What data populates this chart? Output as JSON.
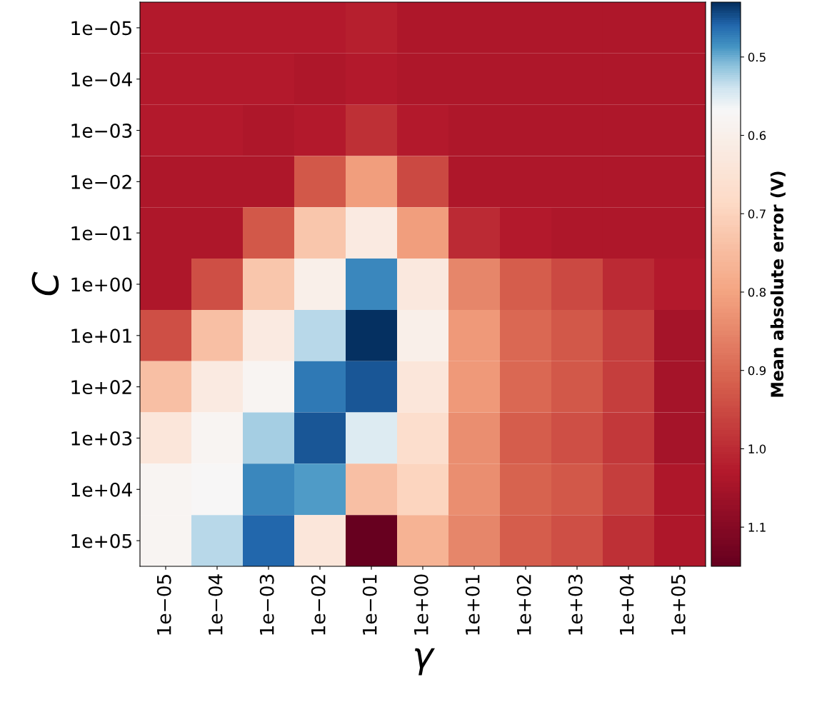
{
  "chart_data": {
    "type": "heatmap",
    "xlabel": "γ",
    "ylabel": "C",
    "clabel": "Mean absolute error (V)",
    "categories": [
      "1e−05",
      "1e−04",
      "1e−03",
      "1e−02",
      "1e−01",
      "1e+00",
      "1e+01",
      "1e+02",
      "1e+03",
      "1e+04",
      "1e+05"
    ],
    "y_categories": [
      "1e−05",
      "1e−04",
      "1e−03",
      "1e−02",
      "1e−01",
      "1e+00",
      "1e+01",
      "1e+02",
      "1e+03",
      "1e+04",
      "1e+05"
    ],
    "cells": [
      [
        1.03,
        1.03,
        1.03,
        1.03,
        1.02,
        1.04,
        1.04,
        1.04,
        1.04,
        1.04,
        1.04
      ],
      [
        1.03,
        1.03,
        1.03,
        1.04,
        1.03,
        1.04,
        1.04,
        1.04,
        1.04,
        1.04,
        1.04
      ],
      [
        1.03,
        1.03,
        1.04,
        1.03,
        0.99,
        1.03,
        1.04,
        1.04,
        1.04,
        1.04,
        1.04
      ],
      [
        1.04,
        1.04,
        1.04,
        0.93,
        0.81,
        0.95,
        1.04,
        1.04,
        1.04,
        1.04,
        1.04
      ],
      [
        1.04,
        1.04,
        0.93,
        0.73,
        0.62,
        0.81,
        1.0,
        1.03,
        1.04,
        1.04,
        1.04
      ],
      [
        1.04,
        0.94,
        0.73,
        0.6,
        0.48,
        0.63,
        0.85,
        0.92,
        0.95,
        1.0,
        1.03
      ],
      [
        0.94,
        0.74,
        0.62,
        0.53,
        0.43,
        0.6,
        0.82,
        0.9,
        0.93,
        0.97,
        1.05
      ],
      [
        0.74,
        0.62,
        0.58,
        0.47,
        0.45,
        0.64,
        0.82,
        0.9,
        0.93,
        0.97,
        1.05
      ],
      [
        0.64,
        0.58,
        0.52,
        0.45,
        0.55,
        0.67,
        0.84,
        0.92,
        0.94,
        0.98,
        1.05
      ],
      [
        0.58,
        0.57,
        0.48,
        0.49,
        0.74,
        0.7,
        0.84,
        0.91,
        0.93,
        0.97,
        1.04
      ],
      [
        0.58,
        0.53,
        0.46,
        0.64,
        1.15,
        0.77,
        0.85,
        0.92,
        0.94,
        0.99,
        1.04
      ]
    ],
    "clim": [
      1.15,
      0.43
    ],
    "cticks": [
      0.5,
      0.6,
      0.7,
      0.8,
      0.9,
      {
        "value": 1,
        "label": "1.0"
      },
      1.1
    ]
  }
}
